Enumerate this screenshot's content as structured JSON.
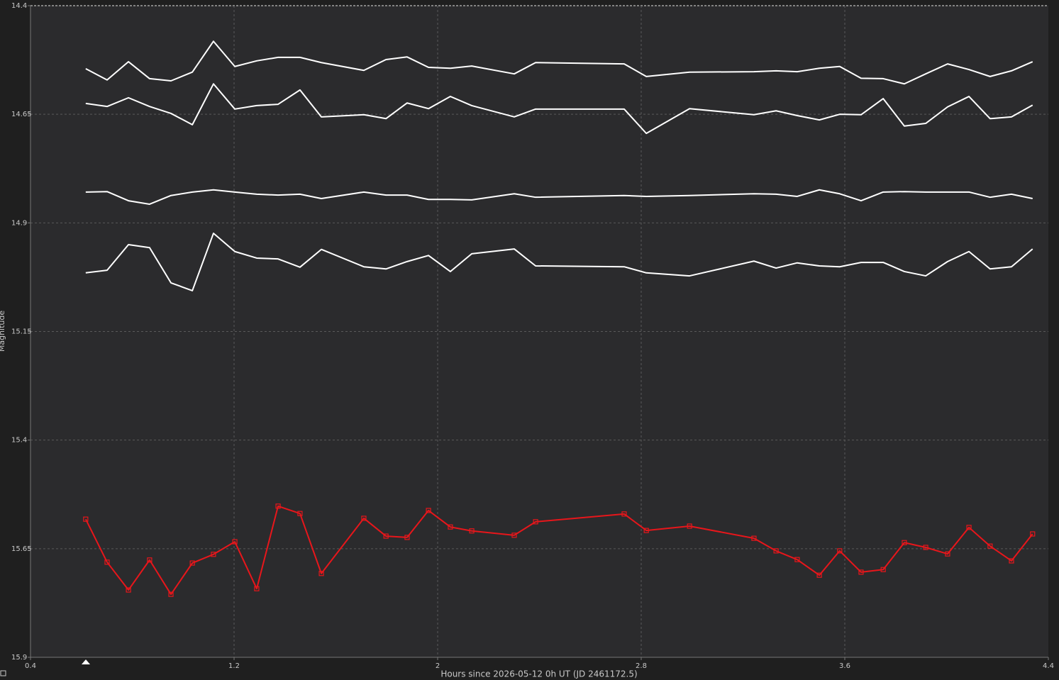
{
  "chart_data": {
    "type": "line",
    "x_label": "Hours since 2026-05-12 0h UT (JD 2461172.5)",
    "y_label": "Magnitude",
    "xlim": [
      0.4,
      4.4
    ],
    "xticks": [
      0.4,
      1.2,
      2,
      2.8,
      3.6,
      4.4
    ],
    "ylim": [
      15.9,
      14.4
    ],
    "yticks": [
      14.4,
      14.65,
      14.9,
      15.15,
      15.4,
      15.65,
      15.9
    ],
    "grid": true,
    "x": [
      0.617,
      0.701,
      0.785,
      0.868,
      0.952,
      1.036,
      1.119,
      1.203,
      1.289,
      1.373,
      1.459,
      1.543,
      1.71,
      1.797,
      1.88,
      1.964,
      2.05,
      2.134,
      2.301,
      2.385,
      2.733,
      2.82,
      2.99,
      3.243,
      3.33,
      3.413,
      3.5,
      3.58,
      3.664,
      3.751,
      3.834,
      3.918,
      4.004,
      4.088,
      4.171,
      4.255,
      4.338
    ],
    "series": [
      {
        "color": "#ffffff",
        "values": [
          14.545,
          14.571,
          14.529,
          14.568,
          14.573,
          14.553,
          14.482,
          14.54,
          14.527,
          14.519,
          14.519,
          14.531,
          14.549,
          14.524,
          14.518,
          14.542,
          14.544,
          14.539,
          14.557,
          14.531,
          14.534,
          14.563,
          14.553,
          14.552,
          14.55,
          14.552,
          14.544,
          14.54,
          14.567,
          14.568,
          14.58,
          14.557,
          14.534,
          14.547,
          14.563,
          14.55,
          14.529
        ]
      },
      {
        "color": "#ffffff",
        "values": [
          14.625,
          14.632,
          14.612,
          14.632,
          14.648,
          14.674,
          14.58,
          14.638,
          14.63,
          14.627,
          14.594,
          14.656,
          14.651,
          14.66,
          14.624,
          14.637,
          14.609,
          14.63,
          14.656,
          14.638,
          14.638,
          14.694,
          14.637,
          14.651,
          14.642,
          14.653,
          14.663,
          14.65,
          14.651,
          14.614,
          14.677,
          14.671,
          14.633,
          14.609,
          14.66,
          14.656,
          14.629
        ]
      },
      {
        "color": "#ffffff",
        "values": [
          14.829,
          14.828,
          14.849,
          14.857,
          14.837,
          14.829,
          14.824,
          14.829,
          14.834,
          14.836,
          14.834,
          14.844,
          14.829,
          14.836,
          14.836,
          14.846,
          14.846,
          14.847,
          14.833,
          14.841,
          14.837,
          14.839,
          14.837,
          14.833,
          14.834,
          14.839,
          14.824,
          14.833,
          14.849,
          14.829,
          14.828,
          14.829,
          14.829,
          14.829,
          14.841,
          14.834,
          14.844
        ]
      },
      {
        "color": "#ffffff",
        "values": [
          15.015,
          15.009,
          14.95,
          14.957,
          15.038,
          15.056,
          14.924,
          14.966,
          14.981,
          14.983,
          15.002,
          14.961,
          15.001,
          15.006,
          14.989,
          14.975,
          15.012,
          14.971,
          14.96,
          14.999,
          15.001,
          15.015,
          15.022,
          14.988,
          15.004,
          14.992,
          14.999,
          15.001,
          14.991,
          14.991,
          15.012,
          15.022,
          14.989,
          14.966,
          15.006,
          15.001,
          14.96
        ]
      },
      {
        "color": "#e8161b",
        "marker": "square",
        "values": [
          15.582,
          15.681,
          15.745,
          15.676,
          15.755,
          15.683,
          15.663,
          15.634,
          15.742,
          15.552,
          15.569,
          15.707,
          15.58,
          15.621,
          15.624,
          15.562,
          15.6,
          15.609,
          15.619,
          15.588,
          15.57,
          15.608,
          15.598,
          15.626,
          15.655,
          15.675,
          15.711,
          15.655,
          15.704,
          15.698,
          15.636,
          15.647,
          15.662,
          15.601,
          15.644,
          15.678,
          15.616
        ]
      }
    ]
  }
}
